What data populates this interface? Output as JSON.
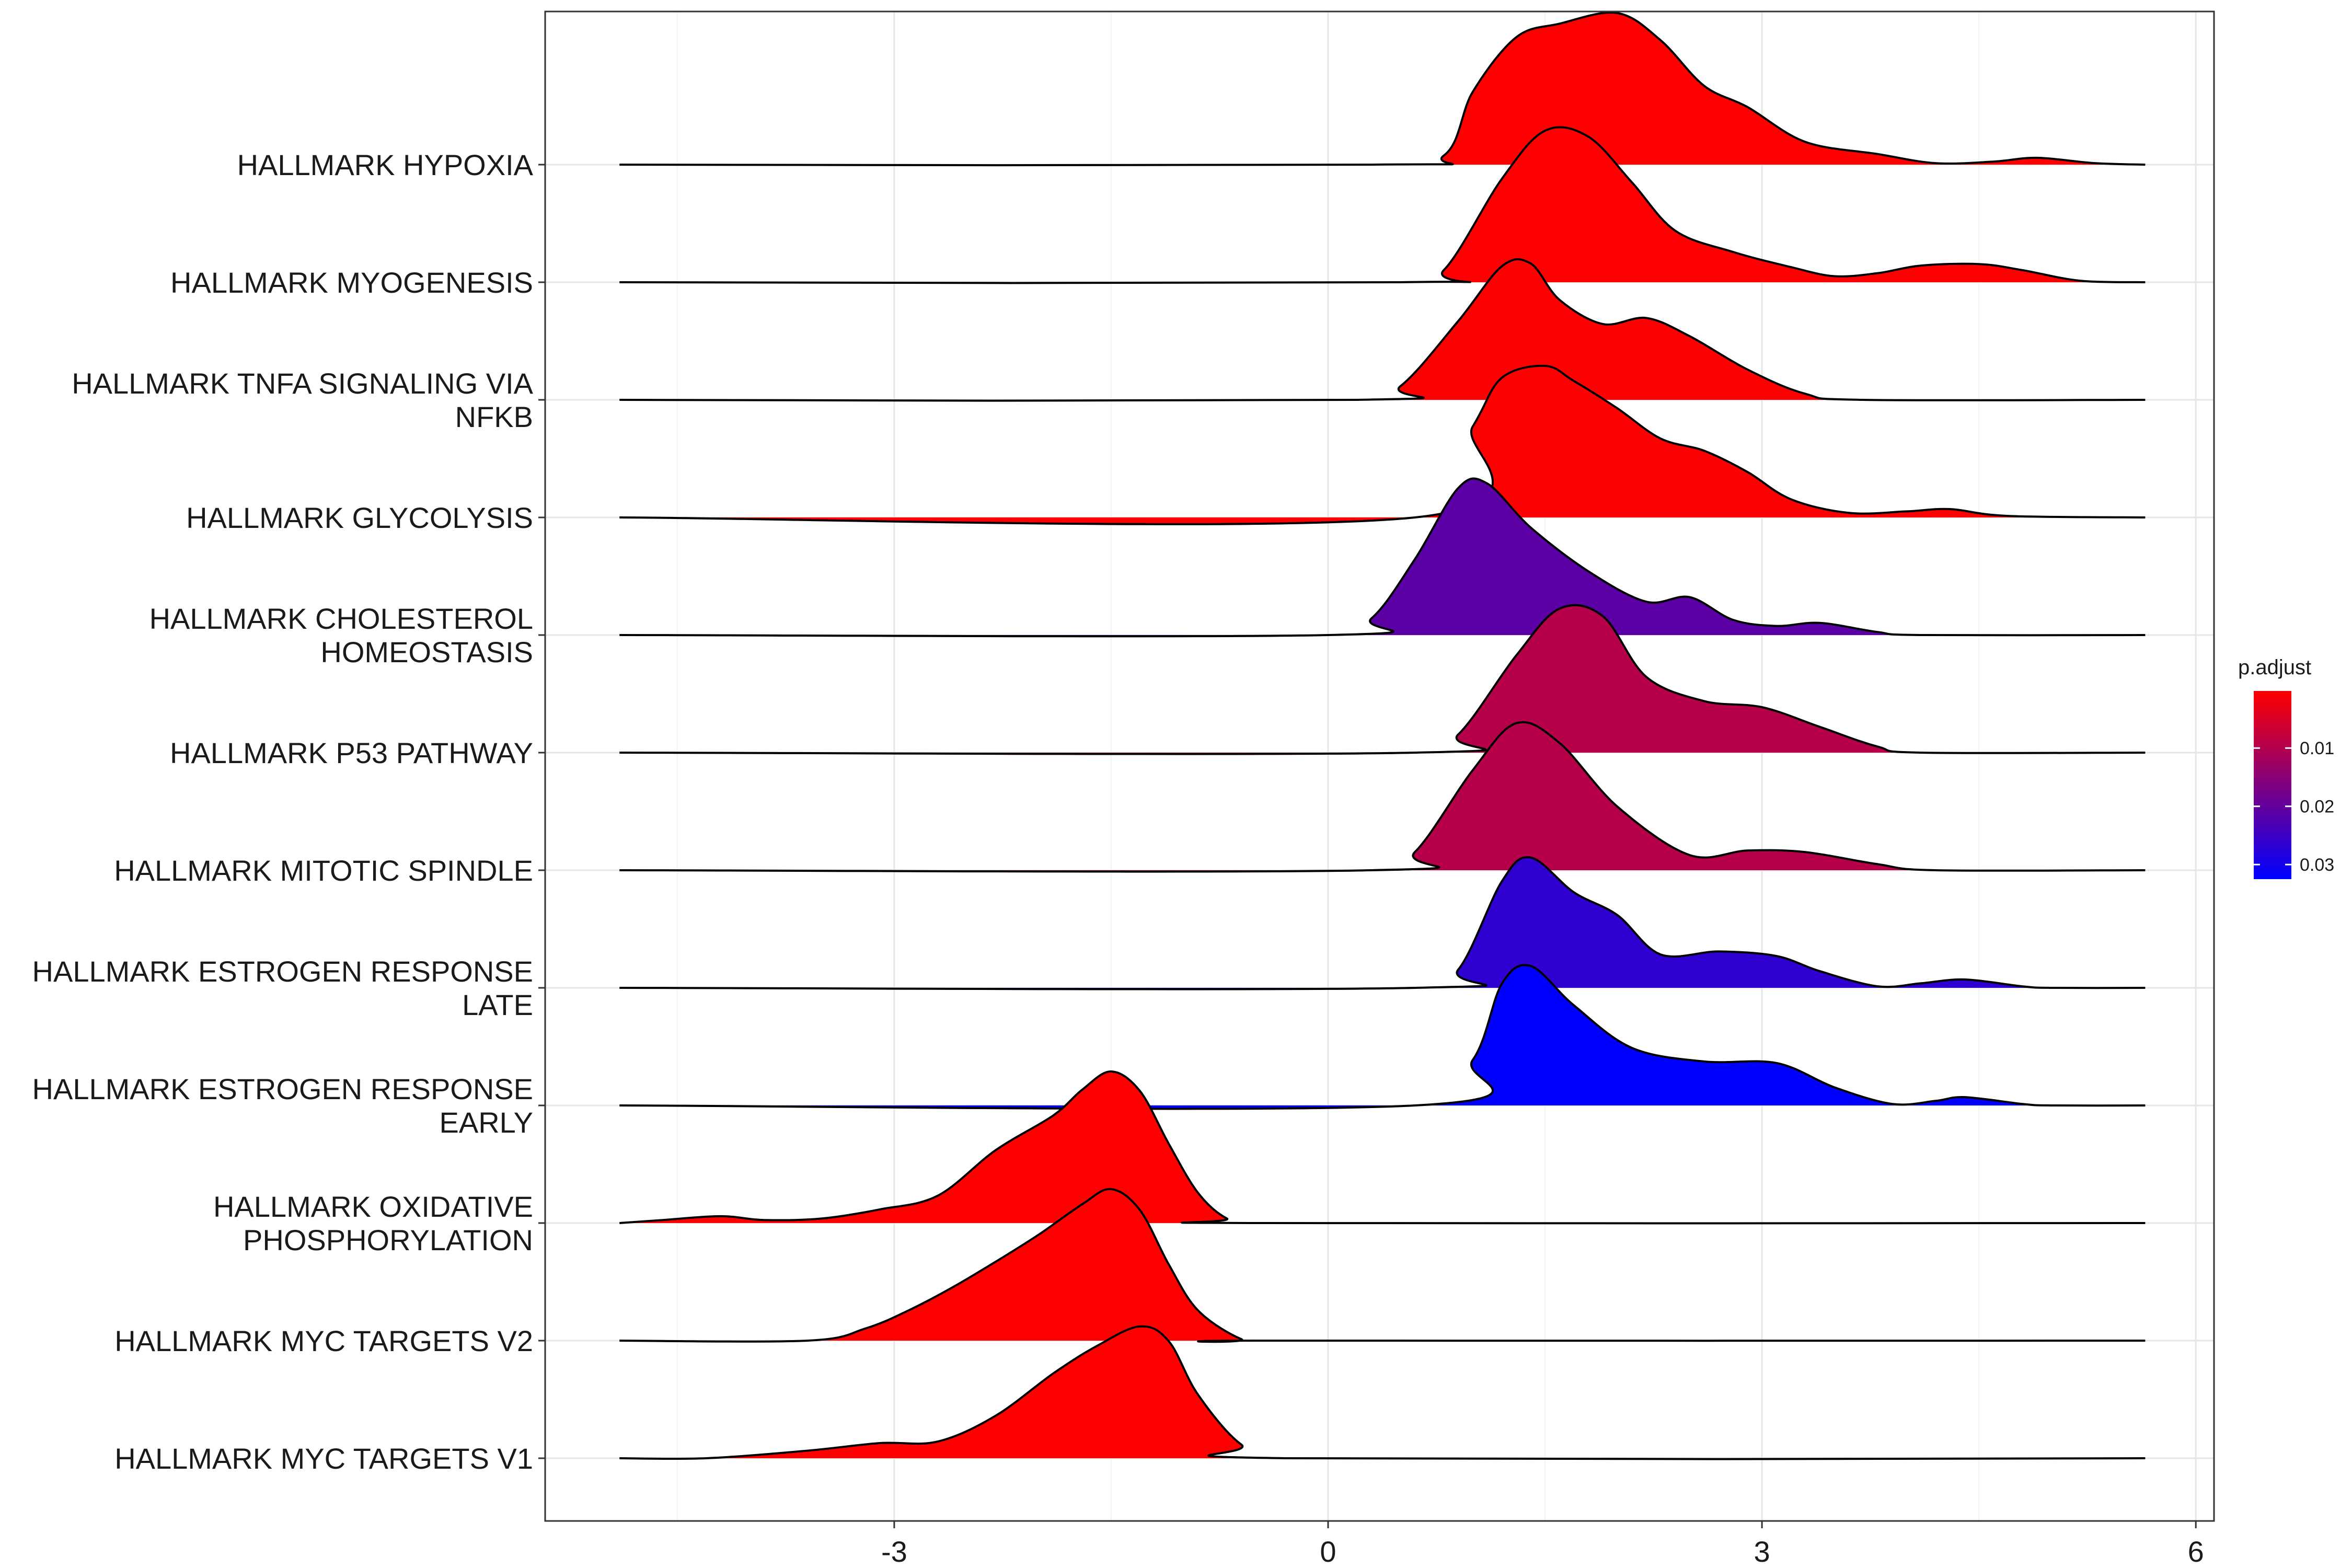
{
  "chart_data": {
    "type": "ridgeline",
    "x_axis": {
      "ticks": [
        -3,
        0,
        3,
        6
      ],
      "range": [
        -5.4,
        6.2
      ]
    },
    "grid": true,
    "legend": {
      "title": "p.adjust",
      "placement": "right",
      "ticks": [
        0.01,
        0.02,
        0.03
      ],
      "tick_labels": [
        "0.01",
        "0.02",
        "0.03"
      ],
      "range": [
        0.0002,
        0.0325
      ],
      "colors": {
        "low": "#FF0000",
        "high": "#0000FF"
      }
    },
    "series": [
      {
        "name": "HALLMARK HYPOXIA",
        "p_adjust": 0.0002,
        "density": [
          [
            -4.9,
            0
          ],
          [
            0.3,
            0
          ],
          [
            0.8,
            0.06
          ],
          [
            1.0,
            0.48
          ],
          [
            1.3,
            0.84
          ],
          [
            1.6,
            0.93
          ],
          [
            2.0,
            1.0
          ],
          [
            2.3,
            0.82
          ],
          [
            2.6,
            0.52
          ],
          [
            2.9,
            0.38
          ],
          [
            3.3,
            0.15
          ],
          [
            3.8,
            0.07
          ],
          [
            4.2,
            0.01
          ],
          [
            4.6,
            0.02
          ],
          [
            4.9,
            0.045
          ],
          [
            5.3,
            0.01
          ],
          [
            5.65,
            0
          ]
        ]
      },
      {
        "name": "HALLMARK MYOGENESIS",
        "p_adjust": 0.0003,
        "density": [
          [
            -4.9,
            0
          ],
          [
            0.5,
            0
          ],
          [
            0.8,
            0.08
          ],
          [
            1.2,
            0.68
          ],
          [
            1.5,
            1.0
          ],
          [
            1.8,
            0.96
          ],
          [
            2.1,
            0.66
          ],
          [
            2.4,
            0.34
          ],
          [
            2.8,
            0.2
          ],
          [
            3.2,
            0.1
          ],
          [
            3.5,
            0.04
          ],
          [
            3.8,
            0.06
          ],
          [
            4.1,
            0.11
          ],
          [
            4.5,
            0.12
          ],
          [
            4.8,
            0.08
          ],
          [
            5.2,
            0.01
          ],
          [
            5.65,
            0
          ]
        ]
      },
      {
        "name": "HALLMARK TNFA SIGNALING VIA NFKB",
        "p_adjust": 0.0004,
        "density": [
          [
            -4.9,
            0
          ],
          [
            0.2,
            0
          ],
          [
            0.5,
            0.09
          ],
          [
            0.9,
            0.52
          ],
          [
            1.2,
            0.88
          ],
          [
            1.4,
            0.9
          ],
          [
            1.6,
            0.66
          ],
          [
            1.9,
            0.5
          ],
          [
            2.2,
            0.54
          ],
          [
            2.5,
            0.42
          ],
          [
            2.9,
            0.2
          ],
          [
            3.3,
            0.04
          ],
          [
            3.7,
            0
          ],
          [
            5.65,
            0
          ]
        ]
      },
      {
        "name": "HALLMARK GLYCOLYSIS",
        "p_adjust": 0.0005,
        "density": [
          [
            -4.9,
            0
          ],
          [
            0.6,
            0
          ],
          [
            1.0,
            0.6
          ],
          [
            1.2,
            0.92
          ],
          [
            1.5,
            1.0
          ],
          [
            1.7,
            0.9
          ],
          [
            2.0,
            0.72
          ],
          [
            2.3,
            0.52
          ],
          [
            2.6,
            0.44
          ],
          [
            2.9,
            0.3
          ],
          [
            3.2,
            0.12
          ],
          [
            3.6,
            0.03
          ],
          [
            4.0,
            0.04
          ],
          [
            4.3,
            0.055
          ],
          [
            4.7,
            0.01
          ],
          [
            5.65,
            0
          ]
        ]
      },
      {
        "name": "HALLMARK CHOLESTEROL HOMEOSTASIS",
        "p_adjust": 0.021,
        "density": [
          [
            -4.9,
            0
          ],
          [
            0,
            0
          ],
          [
            0.3,
            0.11
          ],
          [
            0.6,
            0.5
          ],
          [
            0.9,
            0.97
          ],
          [
            1.1,
            1.0
          ],
          [
            1.4,
            0.71
          ],
          [
            1.8,
            0.42
          ],
          [
            2.2,
            0.22
          ],
          [
            2.5,
            0.25
          ],
          [
            2.8,
            0.1
          ],
          [
            3.1,
            0.06
          ],
          [
            3.4,
            0.08
          ],
          [
            3.8,
            0.02
          ],
          [
            4.1,
            0
          ],
          [
            5.65,
            0
          ]
        ]
      },
      {
        "name": "HALLMARK P53 PATHWAY",
        "p_adjust": 0.0095,
        "density": [
          [
            -4.9,
            0
          ],
          [
            0.6,
            0
          ],
          [
            0.9,
            0.12
          ],
          [
            1.3,
            0.64
          ],
          [
            1.6,
            0.95
          ],
          [
            1.9,
            0.9
          ],
          [
            2.2,
            0.5
          ],
          [
            2.6,
            0.34
          ],
          [
            3.0,
            0.3
          ],
          [
            3.4,
            0.17
          ],
          [
            3.8,
            0.04
          ],
          [
            4.1,
            0
          ],
          [
            5.65,
            0
          ]
        ]
      },
      {
        "name": "HALLMARK MITOTIC SPINDLE",
        "p_adjust": 0.0095,
        "density": [
          [
            -4.9,
            0
          ],
          [
            0.3,
            0
          ],
          [
            0.6,
            0.12
          ],
          [
            1.0,
            0.66
          ],
          [
            1.3,
            0.97
          ],
          [
            1.6,
            0.84
          ],
          [
            2.0,
            0.42
          ],
          [
            2.5,
            0.1
          ],
          [
            2.9,
            0.13
          ],
          [
            3.3,
            0.12
          ],
          [
            3.8,
            0.04
          ],
          [
            4.2,
            0
          ],
          [
            5.65,
            0
          ]
        ]
      },
      {
        "name": "HALLMARK ESTROGEN RESPONSE LATE",
        "p_adjust": 0.0265,
        "density": [
          [
            -4.9,
            0
          ],
          [
            0.6,
            0
          ],
          [
            0.9,
            0.12
          ],
          [
            1.2,
            0.7
          ],
          [
            1.4,
            0.86
          ],
          [
            1.7,
            0.63
          ],
          [
            2.0,
            0.48
          ],
          [
            2.3,
            0.22
          ],
          [
            2.7,
            0.24
          ],
          [
            3.1,
            0.21
          ],
          [
            3.4,
            0.11
          ],
          [
            3.8,
            0.01
          ],
          [
            4.1,
            0.03
          ],
          [
            4.4,
            0.055
          ],
          [
            4.8,
            0.01
          ],
          [
            5.0,
            0
          ],
          [
            5.65,
            0
          ]
        ]
      },
      {
        "name": "HALLMARK ESTROGEN RESPONSE EARLY",
        "p_adjust": 0.0325,
        "density": [
          [
            -4.9,
            0
          ],
          [
            0.6,
            0
          ],
          [
            1.0,
            0.3
          ],
          [
            1.2,
            0.8
          ],
          [
            1.4,
            0.92
          ],
          [
            1.7,
            0.66
          ],
          [
            2.1,
            0.38
          ],
          [
            2.6,
            0.29
          ],
          [
            3.1,
            0.28
          ],
          [
            3.5,
            0.12
          ],
          [
            3.9,
            0.01
          ],
          [
            4.2,
            0.03
          ],
          [
            4.4,
            0.055
          ],
          [
            4.8,
            0.01
          ],
          [
            5.0,
            0
          ],
          [
            5.65,
            0
          ]
        ]
      },
      {
        "name": "HALLMARK OXIDATIVE PHOSPHORYLATION",
        "p_adjust": 0.0002,
        "density": [
          [
            -4.9,
            0
          ],
          [
            -4.6,
            0.02
          ],
          [
            -4.2,
            0.045
          ],
          [
            -3.9,
            0.02
          ],
          [
            -3.5,
            0.03
          ],
          [
            -3.1,
            0.09
          ],
          [
            -2.7,
            0.18
          ],
          [
            -2.3,
            0.48
          ],
          [
            -1.9,
            0.71
          ],
          [
            -1.7,
            0.88
          ],
          [
            -1.5,
            1.0
          ],
          [
            -1.3,
            0.87
          ],
          [
            -1.1,
            0.52
          ],
          [
            -0.9,
            0.2
          ],
          [
            -0.7,
            0.03
          ],
          [
            -0.5,
            0
          ],
          [
            5.65,
            0
          ]
        ]
      },
      {
        "name": "HALLMARK MYC TARGETS V2",
        "p_adjust": 0.0002,
        "density": [
          [
            -4.9,
            0
          ],
          [
            -3.6,
            0
          ],
          [
            -3.2,
            0.08
          ],
          [
            -2.9,
            0.2
          ],
          [
            -2.6,
            0.35
          ],
          [
            -2.3,
            0.52
          ],
          [
            -2.0,
            0.7
          ],
          [
            -1.7,
            0.9
          ],
          [
            -1.5,
            1.0
          ],
          [
            -1.3,
            0.86
          ],
          [
            -1.1,
            0.5
          ],
          [
            -0.9,
            0.2
          ],
          [
            -0.6,
            0.01
          ],
          [
            -0.4,
            0
          ],
          [
            5.65,
            0
          ]
        ]
      },
      {
        "name": "HALLMARK MYC TARGETS V1",
        "p_adjust": 0.0002,
        "density": [
          [
            -4.9,
            0
          ],
          [
            -4.3,
            0
          ],
          [
            -3.6,
            0.05
          ],
          [
            -3.1,
            0.1
          ],
          [
            -2.7,
            0.11
          ],
          [
            -2.3,
            0.28
          ],
          [
            -1.9,
            0.56
          ],
          [
            -1.6,
            0.74
          ],
          [
            -1.3,
            0.87
          ],
          [
            -1.1,
            0.77
          ],
          [
            -0.9,
            0.42
          ],
          [
            -0.6,
            0.09
          ],
          [
            -0.3,
            0
          ],
          [
            5.65,
            0
          ]
        ]
      }
    ]
  }
}
